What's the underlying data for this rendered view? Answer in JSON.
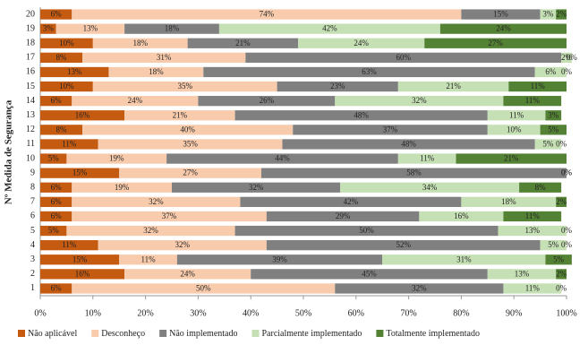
{
  "chart_data": {
    "type": "stacked-bar-horizontal",
    "y_label": "Nº Medida de Segurança",
    "categories": [
      "1",
      "2",
      "3",
      "4",
      "5",
      "6",
      "7",
      "8",
      "9",
      "10",
      "11",
      "12",
      "13",
      "14",
      "15",
      "16",
      "17",
      "18",
      "19",
      "20"
    ],
    "series": [
      {
        "name": "Não aplicável",
        "color": "#c55a11",
        "values": [
          6,
          16,
          15,
          11,
          5,
          6,
          6,
          6,
          15,
          5,
          11,
          8,
          16,
          6,
          10,
          13,
          8,
          10,
          3,
          6
        ],
        "value_labels": [
          "6%",
          "16%",
          "15%",
          "11%",
          "5%",
          "6%",
          "6%",
          "6%",
          "15%",
          "5%",
          "11%",
          "8%",
          "16%",
          "6%",
          "10%",
          "13%",
          "8%",
          "10%",
          "3%",
          "6%"
        ]
      },
      {
        "name": "Desconheço",
        "color": "#f8cbad",
        "values": [
          50,
          24,
          11,
          32,
          32,
          37,
          32,
          19,
          27,
          19,
          35,
          40,
          21,
          24,
          35,
          18,
          31,
          18,
          13,
          74
        ],
        "value_labels": [
          "50%",
          "24%",
          "11%",
          "32%",
          "32%",
          "37%",
          "32%",
          "19%",
          "27%",
          "19%",
          "35%",
          "40%",
          "21%",
          "24%",
          "35%",
          "18%",
          "31%",
          "18%",
          "13%",
          "74%"
        ]
      },
      {
        "name": "Não implementado",
        "color": "#808080",
        "values": [
          32,
          45,
          39,
          52,
          50,
          29,
          42,
          32,
          58,
          44,
          48,
          37,
          48,
          26,
          23,
          63,
          60,
          21,
          18,
          15
        ],
        "value_labels": [
          "32%",
          "45%",
          "39%",
          "52%",
          "50%",
          "29%",
          "42%",
          "32%",
          "58%",
          "44%",
          "48%",
          "37%",
          "48%",
          "26%",
          "23%",
          "63%",
          "60%",
          "21%",
          "18%",
          "15%"
        ]
      },
      {
        "name": "Parcialmente implementado",
        "color": "#c5e0b4",
        "values": [
          11,
          13,
          31,
          5,
          13,
          16,
          18,
          34,
          0,
          11,
          5,
          10,
          11,
          32,
          21,
          6,
          2,
          24,
          42,
          3
        ],
        "value_labels": [
          "11%",
          "13%",
          "31%",
          "5%",
          "13%",
          "16%",
          "18%",
          "34%",
          "0%",
          "11%",
          "5%",
          "10%",
          "11%",
          "32%",
          "21%",
          "6%",
          "2%",
          "24%",
          "42%",
          "3%"
        ]
      },
      {
        "name": "Totalmente implementado",
        "color": "#548235",
        "values": [
          0,
          2,
          5,
          0,
          0,
          11,
          2,
          8,
          0,
          21,
          0,
          5,
          3,
          11,
          11,
          0,
          0,
          27,
          24,
          2
        ],
        "value_labels": [
          "0%",
          "2%",
          "5%",
          "0%",
          "0%",
          "11%",
          "2%",
          "8%",
          "0%",
          "21%",
          "0%",
          "5%",
          "3%",
          "11%",
          "11%",
          "0%",
          "0%",
          "27%",
          "24%",
          "2%"
        ]
      }
    ],
    "xlim": [
      0,
      100
    ],
    "xticks": [
      {
        "value": 0,
        "label": "0%"
      },
      {
        "value": 10,
        "label": "10%"
      },
      {
        "value": 20,
        "label": "20%"
      },
      {
        "value": 30,
        "label": "30%"
      },
      {
        "value": 40,
        "label": "40%"
      },
      {
        "value": 50,
        "label": "50%"
      },
      {
        "value": 60,
        "label": "60%"
      },
      {
        "value": 70,
        "label": "70%"
      },
      {
        "value": 80,
        "label": "80%"
      },
      {
        "value": 90,
        "label": "90%"
      },
      {
        "value": 100,
        "label": "100%"
      }
    ],
    "legend": "bottom"
  }
}
